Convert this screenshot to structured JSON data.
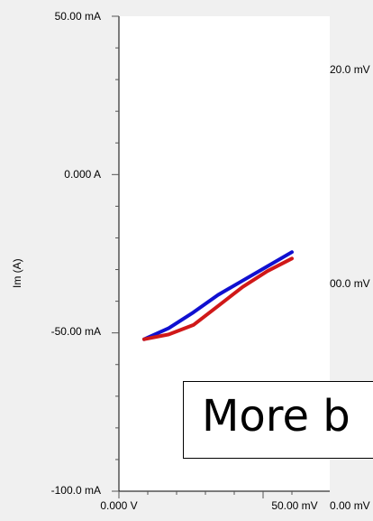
{
  "plot": {
    "ylabel": "Im (A)",
    "y_ticks": [
      "50.00 mA",
      "0.000 A",
      "-50.00 mA",
      "-100.0 mA"
    ],
    "x_ticks": [
      "0.000 V",
      "50.00 mV"
    ],
    "right_labels": [
      "20.0 mV",
      "00.0 mV",
      "0.00 mV"
    ],
    "colors": {
      "forward": "#1010d0",
      "reverse": "#d01818",
      "plot_bg": "#ffffff",
      "frame_bg": "#f0f0f0"
    }
  },
  "chart_data": {
    "type": "line",
    "ylabel": "Im (A)",
    "xlabel": "",
    "xlim": [
      0,
      0.06
    ],
    "ylim": [
      -0.1,
      0.05
    ],
    "series": [
      {
        "x": [
          0.0,
          0.01,
          0.02,
          0.03,
          0.04,
          0.05,
          0.06
        ],
        "y": [
          -0.052,
          -0.0485,
          -0.0435,
          -0.038,
          -0.0335,
          -0.029,
          -0.0245
        ]
      },
      {
        "x": [
          0.0,
          0.01,
          0.02,
          0.03,
          0.04,
          0.05,
          0.06
        ],
        "y": [
          -0.052,
          -0.0505,
          -0.0475,
          -0.0415,
          -0.0355,
          -0.0305,
          -0.0265
        ]
      }
    ]
  },
  "popup": {
    "text": "More b"
  }
}
